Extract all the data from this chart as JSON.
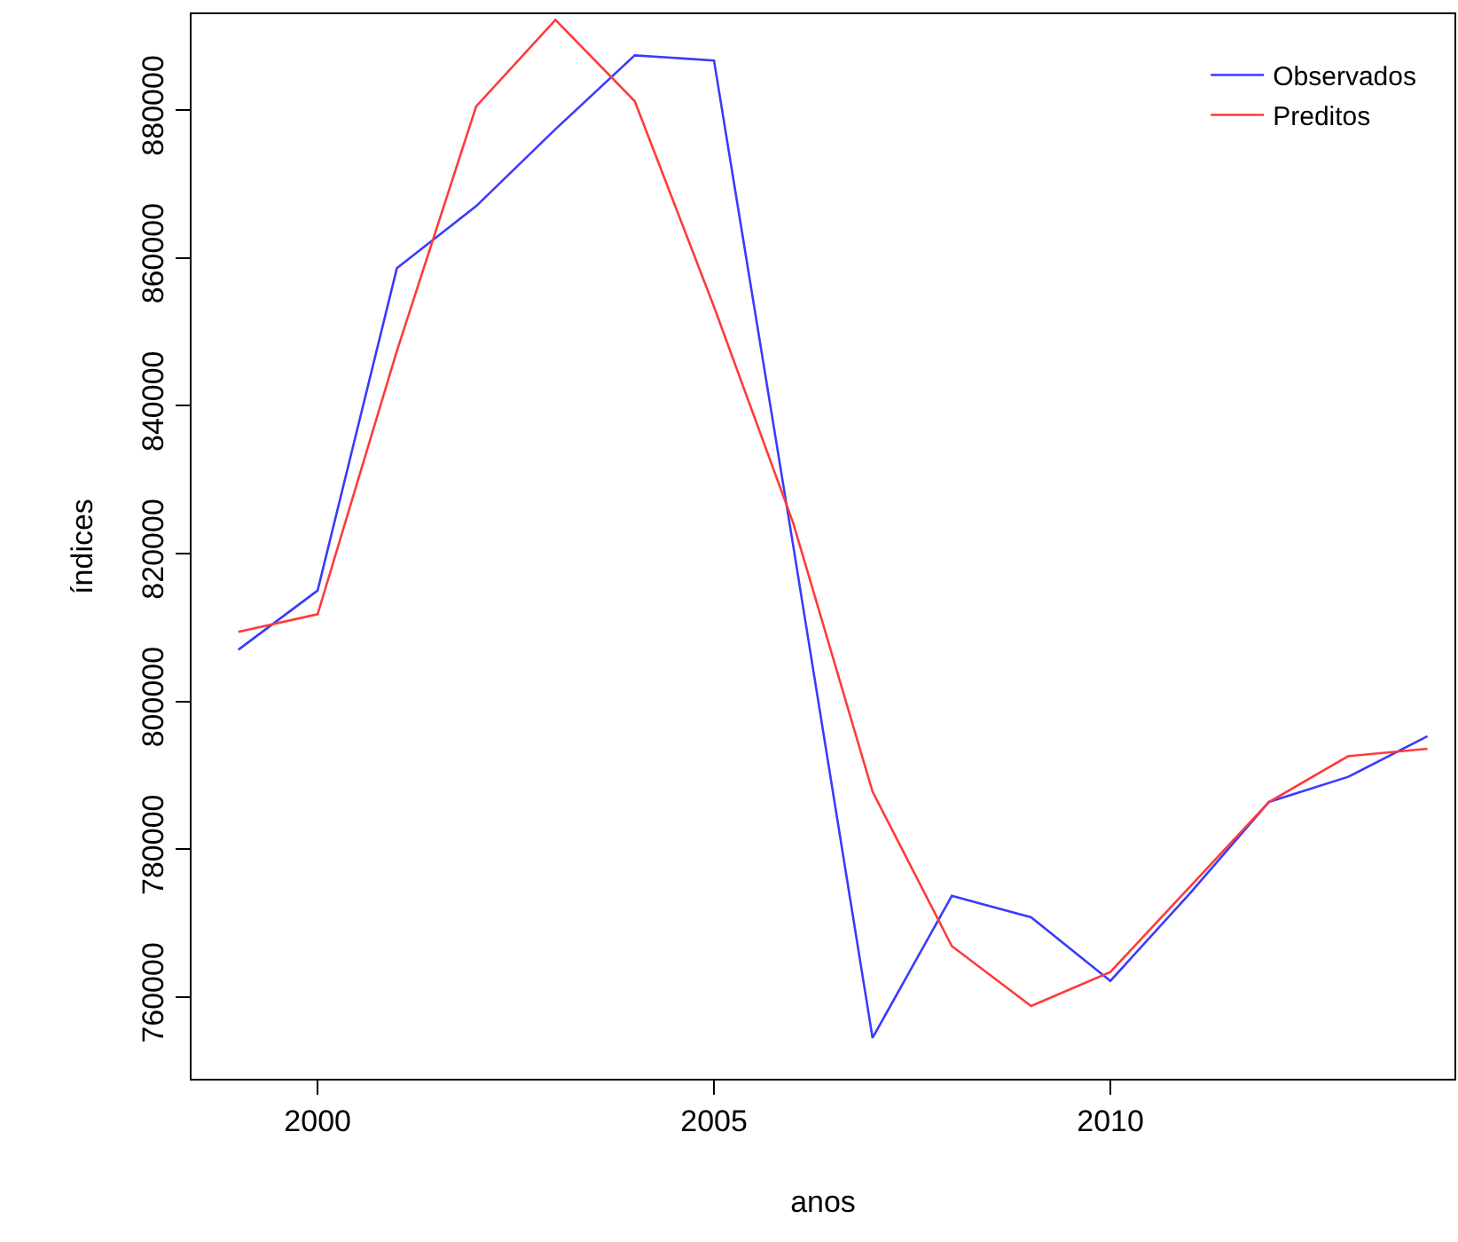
{
  "chart_data": {
    "type": "line",
    "xlabel": "anos",
    "ylabel": "índices",
    "x": [
      1999,
      2000,
      2001,
      2002,
      2003,
      2004,
      2005,
      2006,
      2007,
      2008,
      2009,
      2010,
      2011,
      2012,
      2013,
      2014
    ],
    "series": [
      {
        "name": "Observados",
        "color": "#3a3aff",
        "values": [
          807000,
          815000,
          858600,
          867000,
          877400,
          887400,
          886700,
          821000,
          754500,
          773700,
          770800,
          762200,
          774000,
          786400,
          789800,
          795300
        ]
      },
      {
        "name": "Preditos",
        "color": "#ff3a3a",
        "values": [
          809400,
          811800,
          847400,
          880500,
          892200,
          881200,
          853400,
          824100,
          787800,
          766900,
          758800,
          763400,
          774900,
          786400,
          792600,
          793600
        ]
      }
    ],
    "xlim": [
      1998.41,
      2014.34
    ],
    "xticks": [
      2000,
      2005,
      2010
    ],
    "ylim": [
      748960,
      892960
    ],
    "yticks": [
      760000,
      780000,
      800000,
      820000,
      840000,
      860000,
      880000
    ],
    "grid": false,
    "legend": "top right",
    "marker": "none",
    "line_style": "solid"
  }
}
